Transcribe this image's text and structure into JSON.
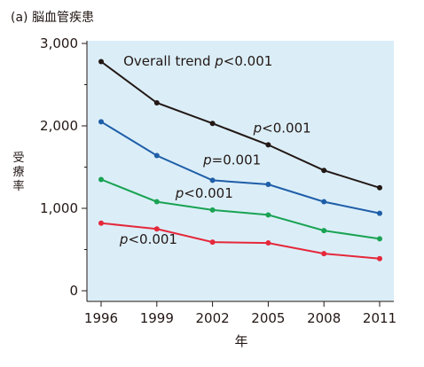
{
  "chart_data": {
    "type": "line",
    "title": "(a) 脳血管疾患",
    "xlabel": "年",
    "ylabel": "受療率",
    "x": [
      1996,
      1999,
      2002,
      2005,
      2008,
      2011
    ],
    "x_tick_labels": [
      "1996",
      "1999",
      "2002",
      "2005",
      "2008",
      "2011"
    ],
    "ylim": [
      0,
      3000
    ],
    "y_ticks": [
      0,
      1000,
      2000,
      3000
    ],
    "y_tick_labels": [
      "0",
      "1,000",
      "2,000",
      "3,000"
    ],
    "grid": false,
    "plot_background": "#dbeef8",
    "series": [
      {
        "color": "#231815",
        "values": [
          2780,
          2280,
          2030,
          1770,
          1460,
          1250
        ]
      },
      {
        "color": "#1f5ea8",
        "values": [
          2050,
          1640,
          1340,
          1290,
          1080,
          940
        ]
      },
      {
        "color": "#1aa353",
        "values": [
          1350,
          1080,
          980,
          920,
          730,
          630
        ]
      },
      {
        "color": "#e5283a",
        "values": [
          820,
          750,
          590,
          580,
          450,
          390
        ]
      }
    ],
    "annotations": [
      {
        "prefix": "Overall trend  ",
        "italic": "p",
        "suffix": "<0.001",
        "at": [
          1997.2,
          2730
        ]
      },
      {
        "prefix": "",
        "italic": "p",
        "suffix": "<0.001",
        "at": [
          2004.2,
          1920
        ]
      },
      {
        "prefix": "",
        "italic": "p",
        "suffix": "=0.001",
        "at": [
          2001.5,
          1530
        ]
      },
      {
        "prefix": "",
        "italic": "p",
        "suffix": "<0.001",
        "at": [
          2000.0,
          1130
        ]
      },
      {
        "prefix": "",
        "italic": "p",
        "suffix": "<0.001",
        "at": [
          1997.0,
          570
        ]
      }
    ]
  }
}
